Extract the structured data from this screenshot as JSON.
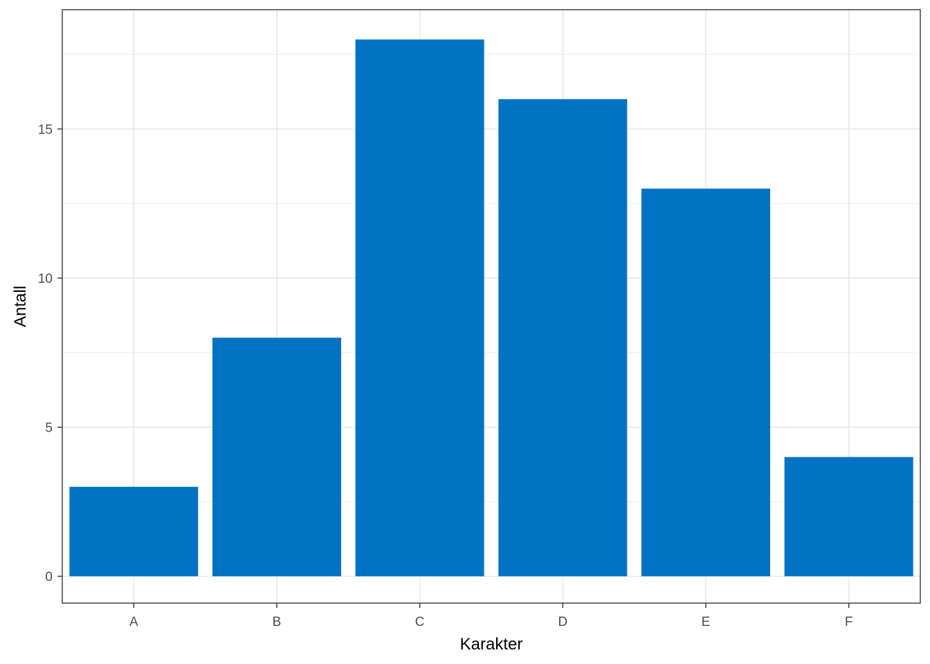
{
  "chart_data": {
    "type": "bar",
    "categories": [
      "A",
      "B",
      "C",
      "D",
      "E",
      "F"
    ],
    "values": [
      3,
      8,
      18,
      16,
      13,
      4
    ],
    "xlabel": "Karakter",
    "ylabel": "Antall",
    "ylim": [
      -0.9,
      19.0
    ],
    "yticks": [
      0,
      5,
      10,
      15
    ],
    "grid": true,
    "bar_color": "#0072C4",
    "grid_color": "#EBEBEB",
    "panel_border_color": "#333333"
  }
}
